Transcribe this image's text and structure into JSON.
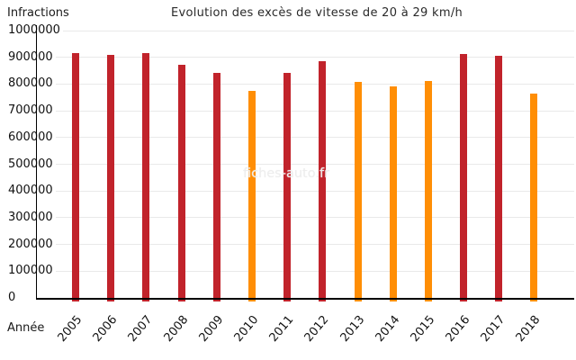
{
  "chart_data": {
    "type": "bar",
    "title": "Evolution des excès de vitesse de 20 à 29 km/h",
    "ylabel": "Infractions",
    "xlabel": "Année",
    "categories": [
      "2005",
      "2006",
      "2007",
      "2008",
      "2009",
      "2010",
      "2011",
      "2012",
      "2013",
      "2014",
      "2015",
      "2016",
      "2017",
      "2018"
    ],
    "values": [
      915000,
      910000,
      915000,
      871000,
      841000,
      774000,
      841000,
      886000,
      807000,
      790000,
      810000,
      913000,
      906000,
      763000
    ],
    "bar_color_keys": [
      "red",
      "red",
      "red",
      "red",
      "red",
      "orange",
      "red",
      "red",
      "orange",
      "orange",
      "orange",
      "red",
      "red",
      "orange"
    ],
    "palette": {
      "red": "#c1232b",
      "orange": "#ff8e05"
    },
    "ylim": [
      0,
      1000000
    ],
    "ytick_step": 100000,
    "ytick_labels": [
      "0",
      "100000",
      "200000",
      "300000",
      "400000",
      "500000",
      "600000",
      "700000",
      "800000",
      "900000",
      "1000000"
    ],
    "grid": true,
    "legend_position": "none",
    "watermark": "fiches-auto.fr"
  }
}
